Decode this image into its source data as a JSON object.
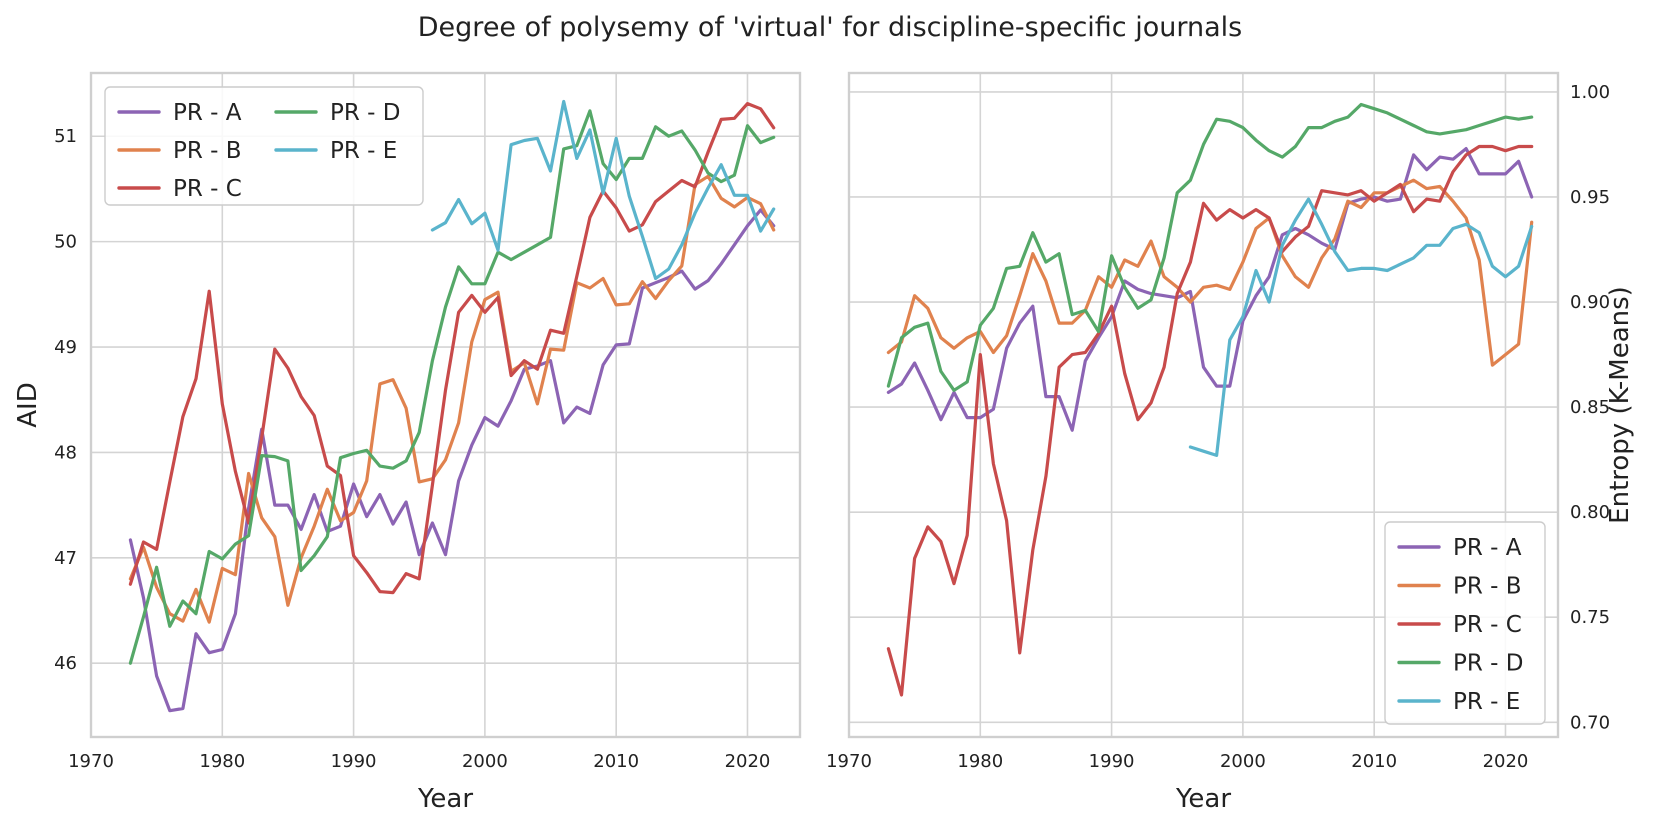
{
  "figure": {
    "title": "Degree of polysemy of 'virtual' for discipline-specific journals"
  },
  "chart_data": [
    {
      "type": "line",
      "xlabel": "Year",
      "ylabel": "AID",
      "xlim": [
        1970,
        2024
      ],
      "ylim": [
        45.3,
        51.6
      ],
      "xticks": [
        1970,
        1980,
        1990,
        2000,
        2010,
        2020
      ],
      "yticks": [
        46,
        47,
        48,
        49,
        50,
        51
      ],
      "grid": true,
      "legend": "top-left, 2 columns",
      "series": [
        {
          "name": "PR - A",
          "color": "#8c64b4",
          "x": [
            1973,
            1974,
            1975,
            1976,
            1977,
            1978,
            1979,
            1980,
            1981,
            1982,
            1983,
            1984,
            1985,
            1986,
            1987,
            1988,
            1989,
            1990,
            1991,
            1992,
            1993,
            1994,
            1995,
            1996,
            1997,
            1998,
            1999,
            2000,
            2001,
            2002,
            2003,
            2004,
            2005,
            2006,
            2007,
            2008,
            2009,
            2010,
            2011,
            2012,
            2013,
            2014,
            2015,
            2016,
            2017,
            2018,
            2019,
            2020,
            2021,
            2022
          ],
          "y": [
            47.17,
            46.62,
            45.88,
            45.55,
            45.57,
            46.28,
            46.1,
            46.13,
            46.47,
            47.47,
            48.22,
            47.5,
            47.5,
            47.27,
            47.6,
            47.25,
            47.3,
            47.7,
            47.39,
            47.6,
            47.32,
            47.53,
            47.03,
            47.33,
            47.03,
            47.73,
            48.07,
            48.33,
            48.25,
            48.49,
            48.79,
            48.82,
            48.87,
            48.28,
            48.43,
            48.37,
            48.83,
            49.02,
            49.03,
            49.56,
            49.61,
            49.66,
            49.72,
            49.55,
            49.63,
            49.79,
            49.97,
            50.15,
            50.3,
            50.15
          ]
        },
        {
          "name": "PR - B",
          "color": "#e0824e",
          "x": [
            1973,
            1974,
            1975,
            1976,
            1977,
            1978,
            1979,
            1980,
            1981,
            1982,
            1983,
            1984,
            1985,
            1986,
            1987,
            1988,
            1989,
            1990,
            1991,
            1992,
            1993,
            1994,
            1995,
            1996,
            1997,
            1998,
            1999,
            2000,
            2001,
            2002,
            2003,
            2004,
            2005,
            2006,
            2007,
            2008,
            2009,
            2010,
            2011,
            2012,
            2013,
            2014,
            2015,
            2016,
            2017,
            2018,
            2019,
            2020,
            2021,
            2022
          ],
          "y": [
            46.8,
            47.1,
            46.72,
            46.47,
            46.4,
            46.7,
            46.39,
            46.9,
            46.84,
            47.8,
            47.38,
            47.2,
            46.55,
            47.0,
            47.3,
            47.65,
            47.35,
            47.43,
            47.73,
            48.65,
            48.69,
            48.42,
            47.72,
            47.75,
            47.93,
            48.28,
            49.05,
            49.45,
            49.52,
            48.77,
            48.85,
            48.46,
            48.98,
            48.97,
            49.61,
            49.56,
            49.65,
            49.4,
            49.41,
            49.62,
            49.46,
            49.63,
            49.77,
            50.54,
            50.62,
            50.41,
            50.33,
            50.42,
            50.36,
            50.11
          ]
        },
        {
          "name": "PR - C",
          "color": "#c84b4b",
          "x": [
            1973,
            1974,
            1975,
            1976,
            1977,
            1978,
            1979,
            1980,
            1981,
            1982,
            1983,
            1984,
            1985,
            1986,
            1987,
            1988,
            1989,
            1990,
            1991,
            1992,
            1993,
            1994,
            1995,
            1996,
            1997,
            1998,
            1999,
            2000,
            2001,
            2002,
            2003,
            2004,
            2005,
            2006,
            2007,
            2008,
            2009,
            2010,
            2011,
            2012,
            2013,
            2014,
            2015,
            2016,
            2017,
            2018,
            2019,
            2020,
            2021,
            2022
          ],
          "y": [
            46.75,
            47.15,
            47.08,
            47.72,
            48.34,
            48.7,
            49.53,
            48.46,
            47.82,
            47.33,
            48.14,
            48.98,
            48.8,
            48.53,
            48.35,
            47.87,
            47.78,
            47.02,
            46.86,
            46.68,
            46.67,
            46.85,
            46.8,
            47.69,
            48.59,
            49.33,
            49.49,
            49.33,
            49.47,
            48.73,
            48.87,
            48.79,
            49.16,
            49.13,
            49.67,
            50.23,
            50.48,
            50.32,
            50.1,
            50.16,
            50.38,
            50.48,
            50.58,
            50.52,
            50.85,
            51.16,
            51.17,
            51.31,
            51.26,
            51.08
          ]
        },
        {
          "name": "PR - D",
          "color": "#55a868",
          "x": [
            1973,
            1974,
            1975,
            1976,
            1977,
            1978,
            1979,
            1980,
            1981,
            1982,
            1983,
            1984,
            1985,
            1986,
            1987,
            1988,
            1989,
            1990,
            1991,
            1992,
            1993,
            1994,
            1995,
            1996,
            1997,
            1998,
            1999,
            2000,
            2001,
            2002,
            2003,
            2004,
            2005,
            2006,
            2007,
            2008,
            2009,
            2010,
            2011,
            2012,
            2013,
            2014,
            2015,
            2016,
            2017,
            2018,
            2019,
            2020,
            2021,
            2022
          ],
          "y": [
            46.0,
            46.44,
            46.91,
            46.35,
            46.59,
            46.47,
            47.06,
            46.99,
            47.13,
            47.21,
            47.97,
            47.96,
            47.92,
            46.88,
            47.02,
            47.2,
            47.95,
            47.99,
            48.02,
            47.87,
            47.85,
            47.92,
            48.19,
            48.87,
            49.38,
            49.76,
            49.6,
            49.6,
            49.9,
            49.83,
            49.9,
            49.97,
            50.04,
            50.88,
            50.91,
            51.24,
            50.74,
            50.59,
            50.79,
            50.79,
            51.09,
            51.0,
            51.05,
            50.87,
            50.65,
            50.57,
            50.63,
            51.1,
            50.94,
            50.99
          ]
        },
        {
          "name": "PR - E",
          "color": "#5ab4cc",
          "x": [
            1996,
            1997,
            1998,
            1999,
            2000,
            2001,
            2002,
            2003,
            2004,
            2005,
            2006,
            2007,
            2008,
            2009,
            2010,
            2011,
            2012,
            2013,
            2014,
            2015,
            2016,
            2017,
            2018,
            2019,
            2020,
            2021,
            2022
          ],
          "y": [
            50.11,
            50.18,
            50.4,
            50.17,
            50.27,
            49.92,
            50.92,
            50.96,
            50.98,
            50.67,
            51.33,
            50.79,
            51.06,
            50.46,
            50.98,
            50.43,
            50.05,
            49.65,
            49.74,
            49.97,
            50.27,
            50.51,
            50.73,
            50.44,
            50.44,
            50.1,
            50.31
          ]
        }
      ]
    },
    {
      "type": "line",
      "xlabel": "Year",
      "ylabel": "Entropy (K-Means)",
      "xlim": [
        1970,
        2024
      ],
      "ylim": [
        0.693,
        1.009
      ],
      "xticks": [
        1970,
        1980,
        1990,
        2000,
        2010,
        2020
      ],
      "yticks": [
        0.7,
        0.75,
        0.8,
        0.85,
        0.9,
        0.95,
        1.0
      ],
      "ytick_labels": [
        "0.70",
        "0.75",
        "0.80",
        "0.85",
        "0.90",
        "0.95",
        "1.00"
      ],
      "grid": true,
      "legend": "bottom-right",
      "series": [
        {
          "name": "PR - A",
          "color": "#8c64b4",
          "x": [
            1973,
            1974,
            1975,
            1976,
            1977,
            1978,
            1979,
            1980,
            1981,
            1982,
            1983,
            1984,
            1985,
            1986,
            1987,
            1988,
            1989,
            1990,
            1991,
            1992,
            1993,
            1994,
            1995,
            1996,
            1997,
            1998,
            1999,
            2000,
            2001,
            2002,
            2003,
            2004,
            2005,
            2006,
            2007,
            2008,
            2009,
            2010,
            2011,
            2012,
            2013,
            2014,
            2015,
            2016,
            2017,
            2018,
            2019,
            2020,
            2021,
            2022
          ],
          "y": [
            0.857,
            0.861,
            0.871,
            0.858,
            0.844,
            0.857,
            0.845,
            0.845,
            0.849,
            0.878,
            0.89,
            0.898,
            0.855,
            0.855,
            0.839,
            0.872,
            0.883,
            0.893,
            0.91,
            0.906,
            0.904,
            0.903,
            0.902,
            0.905,
            0.869,
            0.86,
            0.86,
            0.891,
            0.903,
            0.912,
            0.932,
            0.935,
            0.932,
            0.928,
            0.925,
            0.947,
            0.949,
            0.95,
            0.948,
            0.949,
            0.97,
            0.963,
            0.969,
            0.968,
            0.973,
            0.961,
            0.961,
            0.961,
            0.967,
            0.95
          ]
        },
        {
          "name": "PR - B",
          "color": "#e0824e",
          "x": [
            1973,
            1974,
            1975,
            1976,
            1977,
            1978,
            1979,
            1980,
            1981,
            1982,
            1983,
            1984,
            1985,
            1986,
            1987,
            1988,
            1989,
            1990,
            1991,
            1992,
            1993,
            1994,
            1995,
            1996,
            1997,
            1998,
            1999,
            2000,
            2001,
            2002,
            2003,
            2004,
            2005,
            2006,
            2007,
            2008,
            2009,
            2010,
            2011,
            2012,
            2013,
            2014,
            2015,
            2016,
            2017,
            2018,
            2019,
            2020,
            2021,
            2022
          ],
          "y": [
            0.876,
            0.881,
            0.903,
            0.897,
            0.883,
            0.878,
            0.883,
            0.886,
            0.876,
            0.884,
            0.903,
            0.923,
            0.91,
            0.89,
            0.89,
            0.896,
            0.912,
            0.907,
            0.92,
            0.917,
            0.929,
            0.912,
            0.907,
            0.9,
            0.907,
            0.908,
            0.906,
            0.919,
            0.935,
            0.94,
            0.922,
            0.912,
            0.907,
            0.921,
            0.93,
            0.948,
            0.945,
            0.952,
            0.952,
            0.955,
            0.958,
            0.954,
            0.955,
            0.948,
            0.94,
            0.92,
            0.87,
            0.875,
            0.88,
            0.938
          ]
        },
        {
          "name": "PR - C",
          "color": "#c84b4b",
          "x": [
            1973,
            1974,
            1975,
            1976,
            1977,
            1978,
            1979,
            1980,
            1981,
            1982,
            1983,
            1984,
            1985,
            1986,
            1987,
            1988,
            1989,
            1990,
            1991,
            1992,
            1993,
            1994,
            1995,
            1996,
            1997,
            1998,
            1999,
            2000,
            2001,
            2002,
            2003,
            2004,
            2005,
            2006,
            2007,
            2008,
            2009,
            2010,
            2011,
            2012,
            2013,
            2014,
            2015,
            2016,
            2017,
            2018,
            2019,
            2020,
            2021,
            2022
          ],
          "y": [
            0.735,
            0.713,
            0.778,
            0.793,
            0.786,
            0.766,
            0.789,
            0.875,
            0.823,
            0.796,
            0.733,
            0.782,
            0.817,
            0.869,
            0.875,
            0.876,
            0.885,
            0.898,
            0.866,
            0.844,
            0.852,
            0.869,
            0.904,
            0.919,
            0.947,
            0.939,
            0.944,
            0.94,
            0.944,
            0.94,
            0.924,
            0.931,
            0.936,
            0.953,
            0.952,
            0.951,
            0.953,
            0.948,
            0.952,
            0.956,
            0.943,
            0.949,
            0.948,
            0.962,
            0.97,
            0.974,
            0.974,
            0.972,
            0.974,
            0.974
          ]
        },
        {
          "name": "PR - D",
          "color": "#55a868",
          "x": [
            1973,
            1974,
            1975,
            1976,
            1977,
            1978,
            1979,
            1980,
            1981,
            1982,
            1983,
            1984,
            1985,
            1986,
            1987,
            1988,
            1989,
            1990,
            1991,
            1992,
            1993,
            1994,
            1995,
            1996,
            1997,
            1998,
            1999,
            2000,
            2001,
            2002,
            2003,
            2004,
            2005,
            2006,
            2007,
            2008,
            2009,
            2010,
            2011,
            2012,
            2013,
            2014,
            2015,
            2016,
            2017,
            2018,
            2019,
            2020,
            2021,
            2022
          ],
          "y": [
            0.86,
            0.883,
            0.888,
            0.89,
            0.867,
            0.858,
            0.862,
            0.889,
            0.897,
            0.916,
            0.917,
            0.933,
            0.919,
            0.923,
            0.894,
            0.896,
            0.886,
            0.922,
            0.907,
            0.897,
            0.901,
            0.921,
            0.952,
            0.958,
            0.975,
            0.987,
            0.986,
            0.983,
            0.977,
            0.972,
            0.969,
            0.974,
            0.983,
            0.983,
            0.986,
            0.988,
            0.994,
            0.992,
            0.99,
            0.987,
            0.984,
            0.981,
            0.98,
            0.981,
            0.982,
            0.984,
            0.986,
            0.988,
            0.987,
            0.988
          ]
        },
        {
          "name": "PR - E",
          "color": "#5ab4cc",
          "x": [
            1996,
            1997,
            1998,
            1999,
            2000,
            2001,
            2002,
            2003,
            2004,
            2005,
            2006,
            2007,
            2008,
            2009,
            2010,
            2011,
            2012,
            2013,
            2014,
            2015,
            2016,
            2017,
            2018,
            2019,
            2020,
            2021,
            2022
          ],
          "y": [
            0.831,
            0.829,
            0.827,
            0.882,
            0.893,
            0.915,
            0.9,
            0.927,
            0.939,
            0.949,
            0.937,
            0.924,
            0.915,
            0.916,
            0.916,
            0.915,
            0.918,
            0.921,
            0.927,
            0.927,
            0.935,
            0.937,
            0.933,
            0.917,
            0.912,
            0.917,
            0.936
          ]
        }
      ]
    }
  ]
}
